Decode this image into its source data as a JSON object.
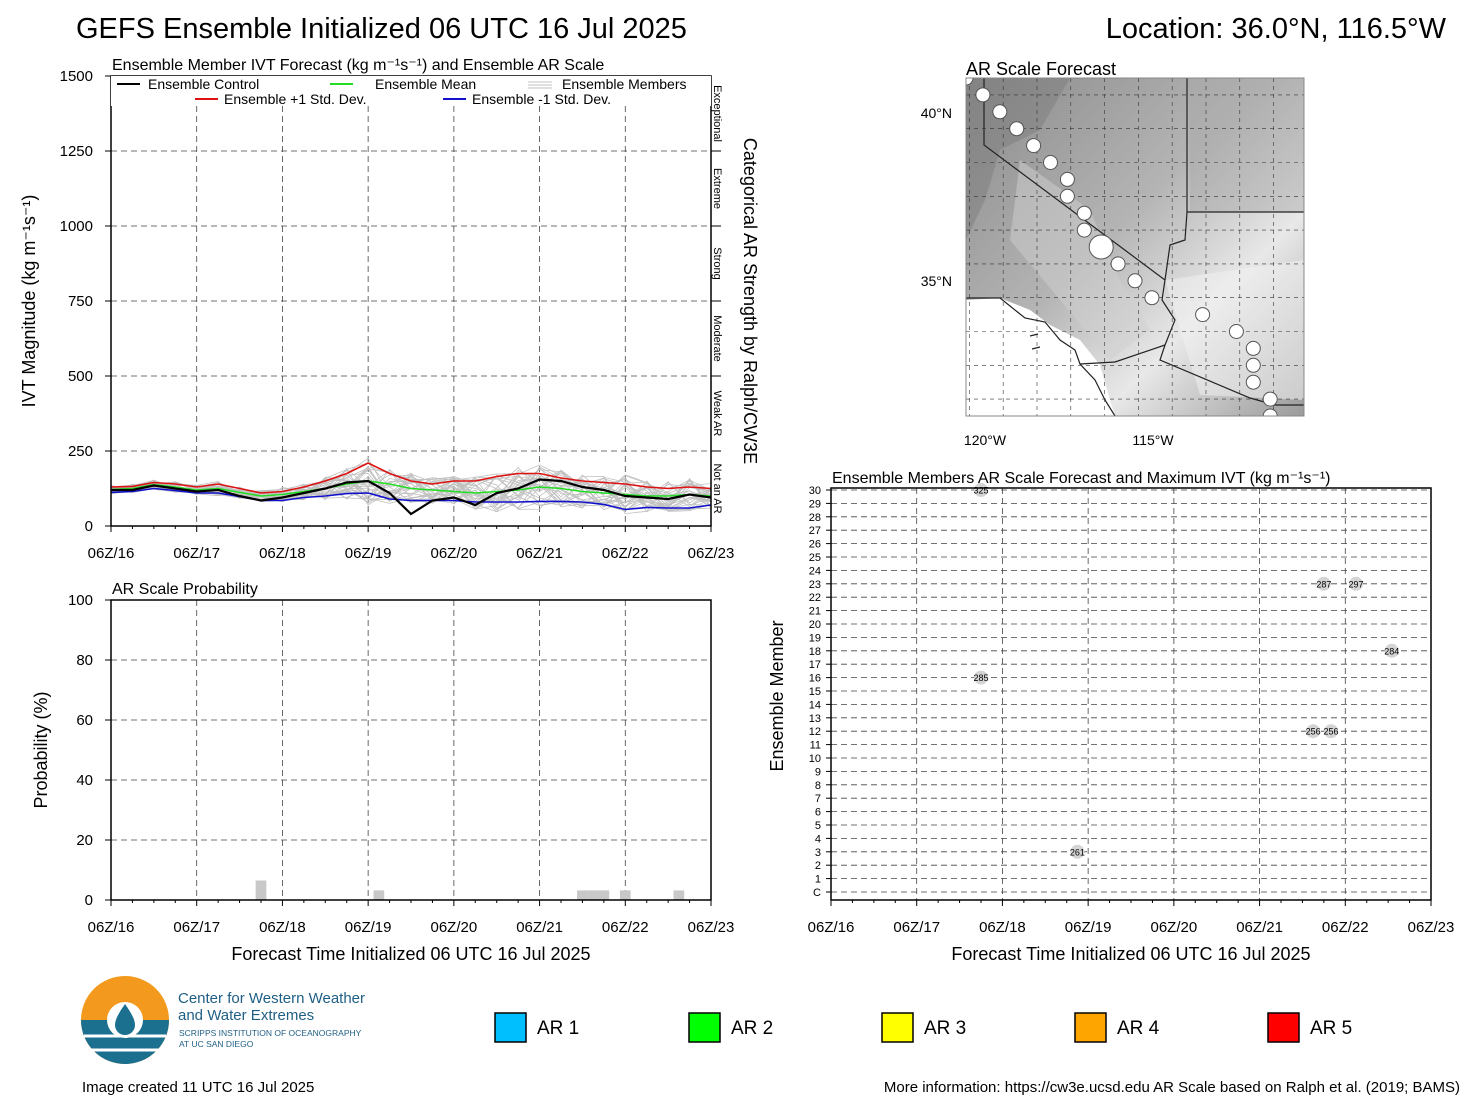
{
  "header": {
    "title": "GEFS Ensemble Initialized 06 UTC 16 Jul 2025",
    "location": "Location: 36.0°N, 116.5°W"
  },
  "ivt_panel": {
    "title": "Ensemble Member IVT Forecast (kg m⁻¹s⁻¹) and Ensemble AR Scale",
    "ylabel": "IVT Magnitude (kg m⁻¹s⁻¹)",
    "right_label": "Categorical AR Strength by Ralph/CW3E",
    "categories": [
      "Exceptional",
      "Extreme",
      "Strong",
      "Moderate",
      "Weak AR",
      "Not an AR"
    ],
    "legend": {
      "control": "Ensemble Control",
      "mean": "Ensemble Mean",
      "members": "Ensemble Members",
      "plus": "Ensemble +1 Std. Dev.",
      "minus": "Ensemble -1 Std. Dev."
    },
    "colors": {
      "control": "#000000",
      "mean": "#22dd22",
      "plus": "#dd1111",
      "minus": "#1111cc",
      "members": "#c0c0c0"
    }
  },
  "prob_panel": {
    "title": "AR Scale Probability",
    "ylabel": "Probability (%)",
    "xlabel": "Forecast Time Initialized 06 UTC 16 Jul 2025"
  },
  "map_panel": {
    "title": "AR Scale Forecast",
    "lat_labels": [
      "40°N",
      "35°N"
    ],
    "lon_labels": [
      "120°W",
      "115°W"
    ]
  },
  "members_panel": {
    "title": "Ensemble Members AR Scale Forecast and Maximum IVT (kg m⁻¹s⁻¹)",
    "ylabel": "Ensemble Member",
    "xlabel": "Forecast Time Initialized 06 UTC 16 Jul 2025",
    "member_labels": [
      "C",
      "1",
      "2",
      "3",
      "4",
      "5",
      "6",
      "7",
      "8",
      "9",
      "10",
      "11",
      "12",
      "13",
      "14",
      "15",
      "16",
      "17",
      "18",
      "19",
      "20",
      "21",
      "22",
      "23",
      "24",
      "25",
      "26",
      "27",
      "28",
      "29",
      "30"
    ]
  },
  "ar_legend": [
    {
      "label": "AR 1",
      "color": "#00bfff"
    },
    {
      "label": "AR 2",
      "color": "#00ff00"
    },
    {
      "label": "AR 3",
      "color": "#ffff00"
    },
    {
      "label": "AR 4",
      "color": "#ffa500"
    },
    {
      "label": "AR 5",
      "color": "#ff0000"
    }
  ],
  "logo": {
    "line1": "Center for Western Weather",
    "line2": "and Water Extremes",
    "line3": "SCRIPPS INSTITUTION OF OCEANOGRAPHY",
    "line4": "AT UC SAN DIEGO"
  },
  "footer": {
    "created": "Image created 11 UTC 16 Jul 2025",
    "info": "More information: https://cw3e.ucsd.edu AR Scale based on Ralph et al. (2019; BAMS)"
  },
  "chart_data": [
    {
      "type": "line",
      "title": "Ensemble Member IVT Forecast (kg m⁻¹s⁻¹) and Ensemble AR Scale",
      "ylabel": "IVT Magnitude (kg m⁻¹s⁻¹)",
      "ylim": [
        0,
        1500
      ],
      "yticks": [
        0,
        250,
        500,
        750,
        1000,
        1250,
        1500
      ],
      "x_hours_from_init": [
        0,
        6,
        12,
        18,
        24,
        30,
        36,
        42,
        48,
        54,
        60,
        66,
        72,
        78,
        84,
        90,
        96,
        102,
        108,
        114,
        120,
        126,
        132,
        138,
        144,
        150,
        156,
        162,
        168
      ],
      "xticks": [
        "06Z/16",
        "06Z/17",
        "06Z/18",
        "06Z/19",
        "06Z/20",
        "06Z/21",
        "06Z/22",
        "06Z/23"
      ],
      "series": [
        {
          "name": "Ensemble Control",
          "values": [
            120,
            120,
            135,
            125,
            115,
            120,
            100,
            85,
            95,
            110,
            125,
            145,
            150,
            110,
            40,
            85,
            95,
            70,
            110,
            125,
            155,
            150,
            130,
            120,
            100,
            95,
            90,
            105,
            95
          ]
        },
        {
          "name": "Ensemble Mean",
          "values": [
            122,
            125,
            138,
            130,
            120,
            125,
            112,
            100,
            105,
            115,
            125,
            140,
            150,
            140,
            125,
            120,
            115,
            110,
            115,
            120,
            130,
            125,
            115,
            110,
            105,
            100,
            100,
            105,
            100
          ]
        },
        {
          "name": "Ensemble +1 Std. Dev.",
          "values": [
            130,
            132,
            145,
            140,
            130,
            140,
            125,
            110,
            115,
            130,
            150,
            175,
            210,
            175,
            150,
            140,
            150,
            150,
            165,
            175,
            175,
            160,
            150,
            145,
            140,
            130,
            125,
            130,
            125
          ]
        },
        {
          "name": "Ensemble -1 Std. Dev.",
          "values": [
            112,
            115,
            125,
            118,
            110,
            110,
            98,
            85,
            85,
            95,
            100,
            108,
            110,
            90,
            85,
            85,
            85,
            80,
            80,
            80,
            82,
            82,
            80,
            72,
            55,
            62,
            60,
            60,
            70
          ]
        }
      ],
      "members_range": [
        20,
        320
      ],
      "ar_categories": [
        "Not an AR",
        "Weak AR",
        "Moderate",
        "Strong",
        "Extreme",
        "Exceptional"
      ]
    },
    {
      "type": "bar",
      "title": "AR Scale Probability",
      "ylabel": "Probability (%)",
      "xlabel": "Forecast Time Initialized 06 UTC 16 Jul 2025",
      "ylim": [
        0,
        100
      ],
      "yticks": [
        0,
        20,
        40,
        60,
        80,
        100
      ],
      "xticks": [
        "06Z/16",
        "06Z/17",
        "06Z/18",
        "06Z/19",
        "06Z/20",
        "06Z/21",
        "06Z/22",
        "06Z/23"
      ],
      "bars": [
        {
          "hour": 42,
          "value": 6.5
        },
        {
          "hour": 75,
          "value": 3.2
        },
        {
          "hour": 132,
          "value": 3.2
        },
        {
          "hour": 135,
          "value": 3.2
        },
        {
          "hour": 138,
          "value": 3.2
        },
        {
          "hour": 144,
          "value": 3.2
        },
        {
          "hour": 159,
          "value": 3.2
        }
      ]
    },
    {
      "type": "scatter",
      "title": "Ensemble Members AR Scale Forecast and Maximum IVT (kg m⁻¹s⁻¹)",
      "ylabel": "Ensemble Member",
      "xlabel": "Forecast Time Initialized 06 UTC 16 Jul 2025",
      "xticks": [
        "06Z/16",
        "06Z/17",
        "06Z/18",
        "06Z/19",
        "06Z/20",
        "06Z/21",
        "06Z/22",
        "06Z/23"
      ],
      "points": [
        {
          "hour": 42,
          "member": 30,
          "ivt": "325"
        },
        {
          "hour": 138,
          "member": 23,
          "ivt": "287"
        },
        {
          "hour": 147,
          "member": 23,
          "ivt": "297"
        },
        {
          "hour": 157,
          "member": 18,
          "ivt": "284"
        },
        {
          "hour": 42,
          "member": 16,
          "ivt": "285"
        },
        {
          "hour": 135,
          "member": 12,
          "ivt": "256"
        },
        {
          "hour": 140,
          "member": 12,
          "ivt": "256"
        },
        {
          "hour": 69,
          "member": 3,
          "ivt": "261"
        }
      ]
    },
    {
      "type": "scatter",
      "title": "AR Scale Forecast",
      "xlabel": "Longitude",
      "ylabel": "Latitude",
      "xlim": [
        -120.6,
        -110.6
      ],
      "ylim": [
        31.0,
        41.0
      ],
      "points": [
        {
          "lon": -120.6,
          "lat": 41.0,
          "size": 1
        },
        {
          "lon": -120.1,
          "lat": 40.5,
          "size": 1
        },
        {
          "lon": -119.6,
          "lat": 40.0,
          "size": 1
        },
        {
          "lon": -119.1,
          "lat": 39.5,
          "size": 1
        },
        {
          "lon": -118.6,
          "lat": 39.0,
          "size": 1
        },
        {
          "lon": -118.1,
          "lat": 38.5,
          "size": 1
        },
        {
          "lon": -117.6,
          "lat": 38.0,
          "size": 1
        },
        {
          "lon": -117.6,
          "lat": 37.5,
          "size": 1
        },
        {
          "lon": -117.1,
          "lat": 37.0,
          "size": 1
        },
        {
          "lon": -117.1,
          "lat": 36.5,
          "size": 1
        },
        {
          "lon": -116.6,
          "lat": 36.0,
          "size": 2
        },
        {
          "lon": -116.1,
          "lat": 35.5,
          "size": 1
        },
        {
          "lon": -115.6,
          "lat": 35.0,
          "size": 1
        },
        {
          "lon": -115.1,
          "lat": 34.5,
          "size": 1
        },
        {
          "lon": -113.6,
          "lat": 34.0,
          "size": 1
        },
        {
          "lon": -112.6,
          "lat": 33.5,
          "size": 1
        },
        {
          "lon": -112.1,
          "lat": 33.0,
          "size": 1
        },
        {
          "lon": -112.1,
          "lat": 32.5,
          "size": 1
        },
        {
          "lon": -112.1,
          "lat": 32.0,
          "size": 1
        },
        {
          "lon": -111.6,
          "lat": 31.5,
          "size": 1
        },
        {
          "lon": -111.6,
          "lat": 31.0,
          "size": 1
        }
      ]
    }
  ]
}
